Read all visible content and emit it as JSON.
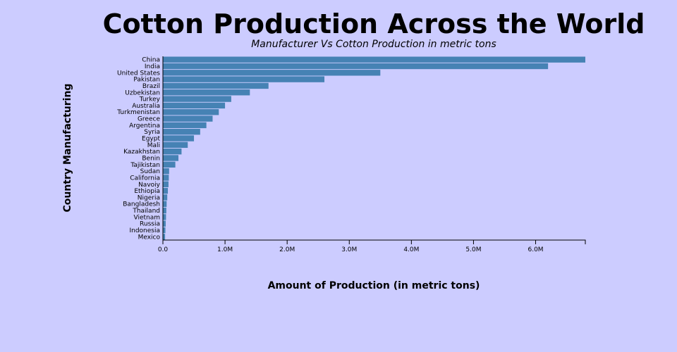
{
  "chart_data": {
    "type": "bar",
    "orientation": "horizontal",
    "title": "Cotton Production Across the World",
    "subtitle": "Manufacturer Vs Cotton Production in metric tons",
    "xlabel": "Amount of Production (in metric tons)",
    "ylabel": "Country Manufacturing",
    "bar_color": "#4682b4",
    "background_color": "#ccccff",
    "xlim": [
      0,
      6800000
    ],
    "x_ticks": [
      0,
      1000000,
      2000000,
      3000000,
      4000000,
      5000000,
      6000000
    ],
    "x_tick_labels": [
      "0.0",
      "1.0M",
      "2.0M",
      "3.0M",
      "4.0M",
      "5.0M",
      "6.0M"
    ],
    "categories": [
      "China",
      "India",
      "United States",
      "Pakistan",
      "Brazil",
      "Uzbekistan",
      "Turkey",
      "Australia",
      "Turkmenistan",
      "Greece",
      "Argentina",
      "Syria",
      "Egypt",
      "Mali",
      "Kazakhstan",
      "Benin",
      "Tajikistan",
      "Sudan",
      "California",
      "Navoiy",
      "Ethiopia",
      "Nigeria",
      "Bangladesh",
      "Thailand",
      "Vietnam",
      "Russia",
      "Indonesia",
      "Mexico"
    ],
    "values": [
      6800000,
      6200000,
      3500000,
      2600000,
      1700000,
      1400000,
      1100000,
      1000000,
      900000,
      800000,
      700000,
      600000,
      500000,
      400000,
      300000,
      250000,
      200000,
      100000,
      95000,
      90000,
      80000,
      70000,
      60000,
      55000,
      50000,
      45000,
      40000,
      35000
    ],
    "grid": false
  }
}
